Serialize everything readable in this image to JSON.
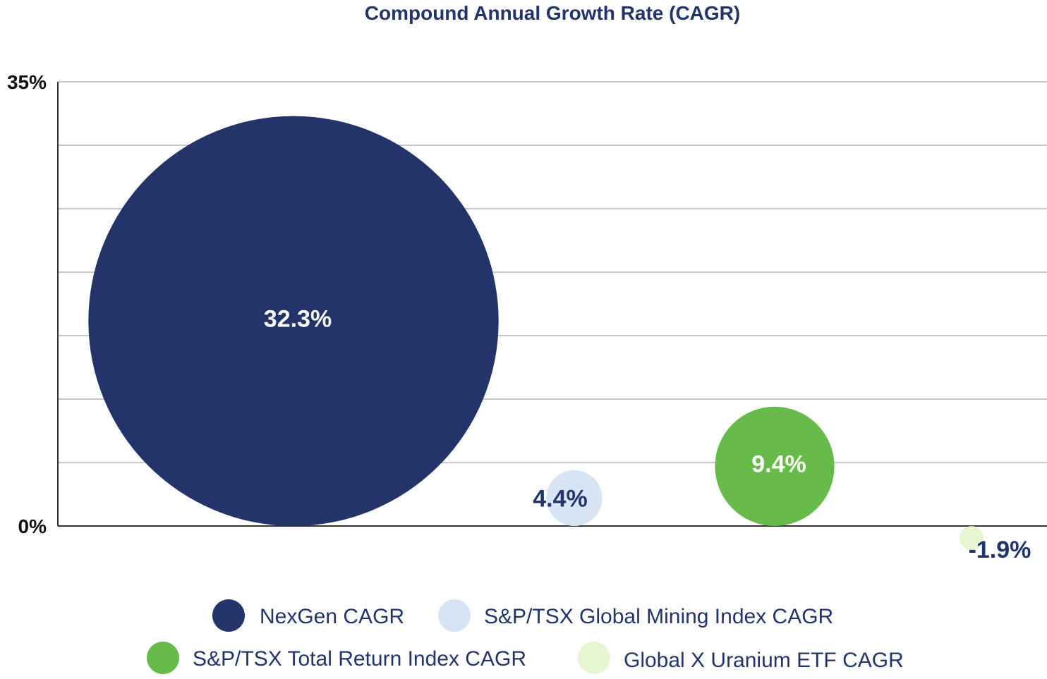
{
  "chart_data": {
    "type": "bubble",
    "title": "Compound Annual Growth Rate (CAGR)",
    "ylim": [
      0,
      35
    ],
    "y_ticks": [
      "35%",
      "0%"
    ],
    "gridlines": 7,
    "grid": true,
    "legend_position": "bottom",
    "series": [
      {
        "name": "NexGen CAGR",
        "value": 32.3,
        "label": "32.3%",
        "color": "#22346a",
        "label_color": "#ffffff"
      },
      {
        "name": "S&P/TSX Global Mining Index CAGR",
        "value": 4.4,
        "label": "4.4%",
        "color": "#d6e4f4",
        "label_color": "#22346a"
      },
      {
        "name": "S&P/TSX Total Return Index CAGR",
        "value": 9.4,
        "label": "9.4%",
        "color": "#66bb4a",
        "label_color": "#ffffff"
      },
      {
        "name": "Global X Uranium ETF CAGR",
        "value": -1.9,
        "label": "-1.9%",
        "color": "#e6f6d2",
        "label_color": "#22346a"
      }
    ]
  }
}
